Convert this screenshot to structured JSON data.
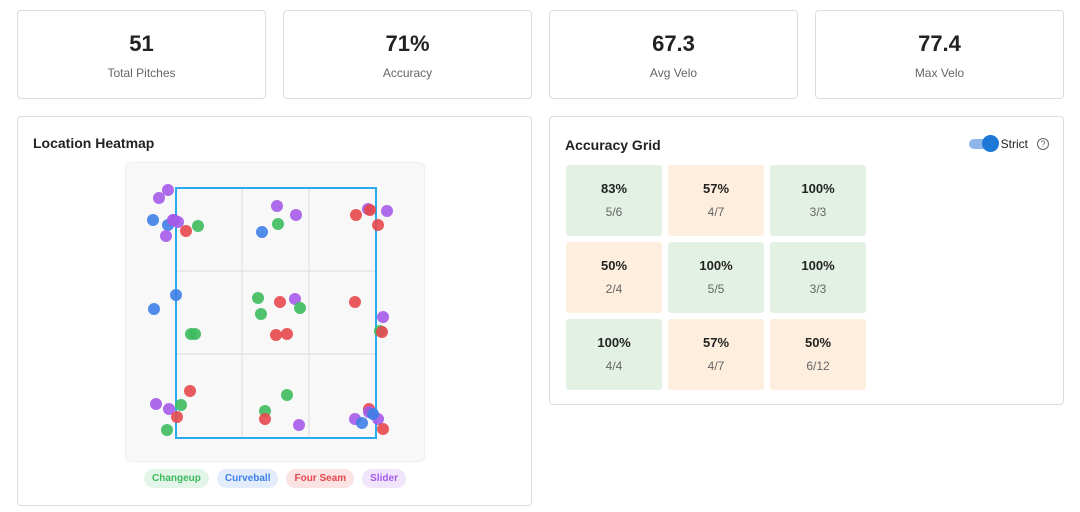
{
  "stats": [
    {
      "value": "51",
      "label": "Total Pitches"
    },
    {
      "value": "71%",
      "label": "Accuracy"
    },
    {
      "value": "67.3",
      "label": "Avg Velo"
    },
    {
      "value": "77.4",
      "label": "Max Velo"
    }
  ],
  "heatmap": {
    "title": "Location Heatmap",
    "zone_color": "#29abf0",
    "legend": [
      {
        "label": "Changeup",
        "color": "#3dbb5e",
        "bg": "#e3f5e8"
      },
      {
        "label": "Curveball",
        "color": "#3e7fe6",
        "bg": "#e2ecfb"
      },
      {
        "label": "Four Seam",
        "color": "#e5484d",
        "bg": "#fbe3e3"
      },
      {
        "label": "Slider",
        "color": "#a45ae8",
        "bg": "#f1e5fc"
      }
    ]
  },
  "accuracy": {
    "title": "Accuracy Grid",
    "toggle_label": "Strict",
    "toggle_on": true,
    "help_icon": "?",
    "cells": [
      {
        "pct": "83%",
        "frac": "5/6",
        "status": "good"
      },
      {
        "pct": "57%",
        "frac": "4/7",
        "status": "bad"
      },
      {
        "pct": "100%",
        "frac": "3/3",
        "status": "good"
      },
      {
        "pct": "50%",
        "frac": "2/4",
        "status": "bad"
      },
      {
        "pct": "100%",
        "frac": "5/5",
        "status": "good"
      },
      {
        "pct": "100%",
        "frac": "3/3",
        "status": "good"
      },
      {
        "pct": "100%",
        "frac": "4/4",
        "status": "good"
      },
      {
        "pct": "57%",
        "frac": "4/7",
        "status": "bad"
      },
      {
        "pct": "50%",
        "frac": "6/12",
        "status": "bad"
      }
    ],
    "colors": {
      "good": "#e3f1e4",
      "bad": "#fdeedd"
    }
  }
}
